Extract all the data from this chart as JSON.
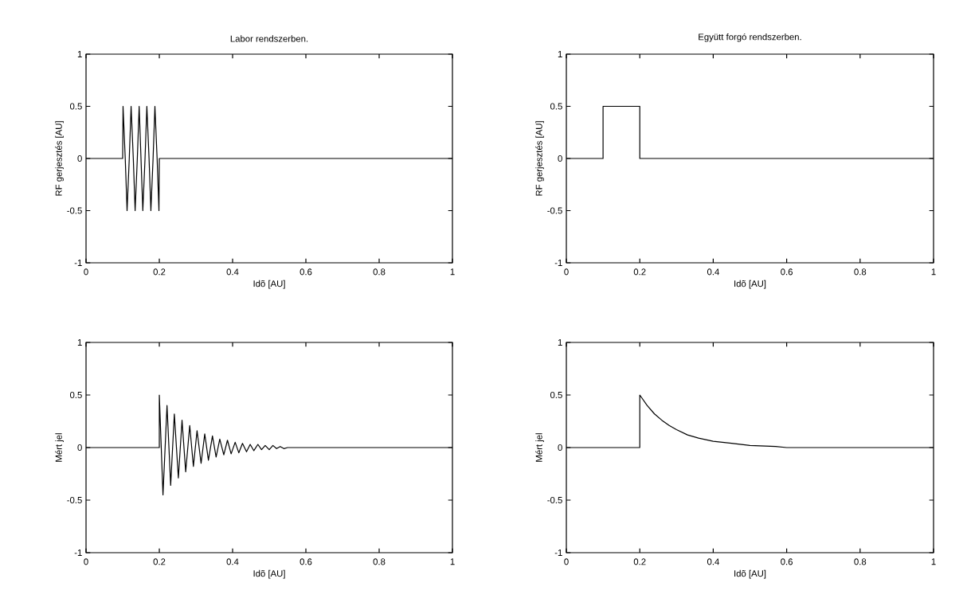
{
  "chart_data": [
    {
      "type": "line",
      "title": "Labor rendszerben.",
      "xlabel": "Idõ [AU]",
      "ylabel": "RF  gerjesztés [AU]",
      "color": "#000000",
      "x": [
        0,
        0.1,
        0.101,
        0.107,
        0.112,
        0.118,
        0.123,
        0.129,
        0.134,
        0.14,
        0.145,
        0.15,
        0.155,
        0.161,
        0.166,
        0.172,
        0.177,
        0.183,
        0.188,
        0.194,
        0.199,
        0.2,
        1
      ],
      "values": [
        0,
        0,
        0.5,
        0,
        -0.5,
        0,
        0.5,
        0,
        -0.5,
        0,
        0.5,
        0,
        -0.5,
        0,
        0.5,
        0,
        -0.5,
        0,
        0.5,
        0,
        -0.5,
        0,
        0
      ],
      "xlim": [
        0,
        1
      ],
      "ylim": [
        -1,
        1
      ],
      "xticks": [
        0,
        0.2,
        0.4,
        0.6,
        0.8,
        1
      ],
      "yticks": [
        -1,
        -0.5,
        0,
        0.5,
        1
      ]
    },
    {
      "type": "line",
      "title": "Együtt forgó rendszerben.",
      "xlabel": "Idõ [AU]",
      "ylabel": "RF  gerjesztés [AU]",
      "color": "#000000",
      "x": [
        0,
        0.1,
        0.1,
        0.2,
        0.2,
        1
      ],
      "values": [
        0,
        0,
        0.5,
        0.5,
        0,
        0
      ],
      "xlim": [
        0,
        1
      ],
      "ylim": [
        -1,
        1
      ],
      "xticks": [
        0,
        0.2,
        0.4,
        0.6,
        0.8,
        1
      ],
      "yticks": [
        -1,
        -0.5,
        0,
        0.5,
        1
      ]
    },
    {
      "type": "line",
      "xlabel": "Idõ [AU]",
      "ylabel": "Mért jel",
      "color": "#000000",
      "x": [
        0,
        0.2,
        0.2,
        0.21,
        0.221,
        0.231,
        0.241,
        0.252,
        0.262,
        0.272,
        0.283,
        0.293,
        0.303,
        0.314,
        0.324,
        0.334,
        0.345,
        0.355,
        0.365,
        0.376,
        0.386,
        0.396,
        0.407,
        0.417,
        0.427,
        0.438,
        0.448,
        0.458,
        0.469,
        0.479,
        0.489,
        0.5,
        0.51,
        0.52,
        0.53,
        0.54,
        0.55,
        1
      ],
      "values": [
        0,
        0,
        0.5,
        -0.45,
        0.4,
        -0.36,
        0.32,
        -0.29,
        0.26,
        -0.23,
        0.21,
        -0.18,
        0.16,
        -0.15,
        0.13,
        -0.12,
        0.11,
        -0.09,
        0.08,
        -0.07,
        0.07,
        -0.06,
        0.05,
        -0.05,
        0.04,
        -0.04,
        0.03,
        -0.03,
        0.03,
        -0.02,
        0.02,
        -0.02,
        0.02,
        -0.01,
        0.01,
        -0.01,
        0,
        0
      ],
      "xlim": [
        0,
        1
      ],
      "ylim": [
        -1,
        1
      ],
      "xticks": [
        0,
        0.2,
        0.4,
        0.6,
        0.8,
        1
      ],
      "yticks": [
        -1,
        -0.5,
        0,
        0.5,
        1
      ]
    },
    {
      "type": "line",
      "xlabel": "Idõ [AU]",
      "ylabel": "Mért jel",
      "color": "#000000",
      "x": [
        0,
        0.2,
        0.2,
        0.22,
        0.24,
        0.26,
        0.28,
        0.3,
        0.33,
        0.36,
        0.4,
        0.45,
        0.5,
        0.57,
        0.6,
        1
      ],
      "values": [
        0,
        0,
        0.5,
        0.4,
        0.32,
        0.26,
        0.21,
        0.17,
        0.12,
        0.09,
        0.06,
        0.04,
        0.02,
        0.01,
        0,
        0
      ],
      "xlim": [
        0,
        1
      ],
      "ylim": [
        -1,
        1
      ],
      "xticks": [
        0,
        0.2,
        0.4,
        0.6,
        0.8,
        1
      ],
      "yticks": [
        -1,
        -0.5,
        0,
        0.5,
        1
      ]
    }
  ]
}
